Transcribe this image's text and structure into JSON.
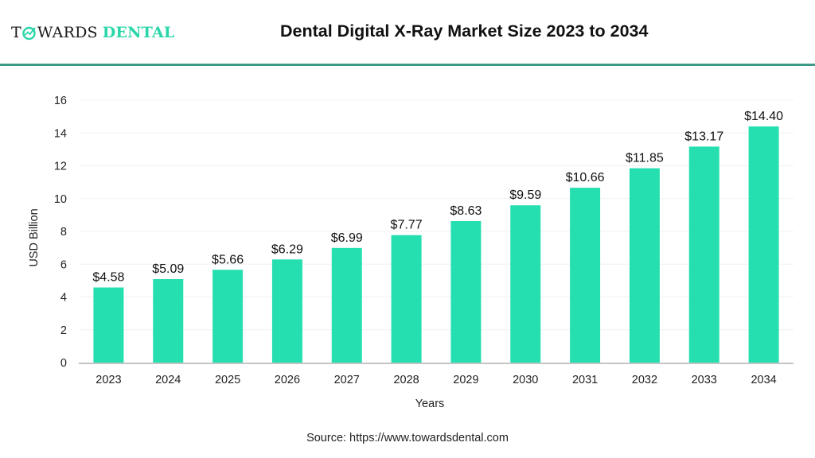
{
  "brand": {
    "name_dark_prefix": "T",
    "name_dark_suffix": "WARDS",
    "name_accent": "DENTAL",
    "accent_color": "#2ad6a8",
    "rule_color": "#3e9a86"
  },
  "header": {
    "title": "Dental Digital X-Ray Market Size 2023 to 2034"
  },
  "footer": {
    "source": "Source: https://www.towardsdental.com"
  },
  "chart_data": {
    "type": "bar",
    "title": "Dental Digital X-Ray Market Size 2023 to 2034",
    "xlabel": "Years",
    "ylabel": "USD Billion",
    "categories": [
      "2023",
      "2024",
      "2025",
      "2026",
      "2027",
      "2028",
      "2029",
      "2030",
      "2031",
      "2032",
      "2033",
      "2034"
    ],
    "values": [
      4.58,
      5.09,
      5.66,
      6.29,
      6.99,
      7.77,
      8.63,
      9.59,
      10.66,
      11.85,
      13.17,
      14.4
    ],
    "data_labels": [
      "$4.58",
      "$5.09",
      "$5.66",
      "$6.29",
      "$6.99",
      "$7.77",
      "$8.63",
      "$9.59",
      "$10.66",
      "$11.85",
      "$13.17",
      "$14.40"
    ],
    "ylim": [
      0,
      16
    ],
    "yticks": [
      0,
      2,
      4,
      6,
      8,
      10,
      12,
      14,
      16
    ],
    "grid": true,
    "legend": "none",
    "bar_color": "#26dfb0"
  }
}
